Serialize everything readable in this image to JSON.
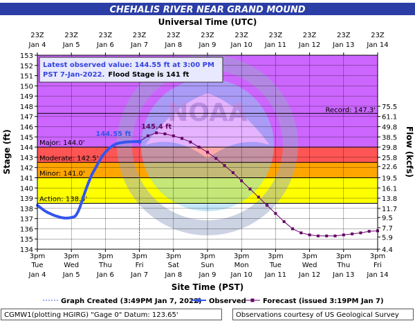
{
  "chart_data": {
    "type": "line",
    "title": "CHEHALIS RIVER NEAR GRAND MOUND",
    "top_axis_label": "Universal Time (UTC)",
    "top_ticks": [
      {
        "time": "23Z",
        "date": "Jan 4"
      },
      {
        "time": "23Z",
        "date": "Jan 5"
      },
      {
        "time": "23Z",
        "date": "Jan 6"
      },
      {
        "time": "23Z",
        "date": "Jan 7"
      },
      {
        "time": "23Z",
        "date": "Jan 8"
      },
      {
        "time": "23Z",
        "date": "Jan 9"
      },
      {
        "time": "23Z",
        "date": "Jan 10"
      },
      {
        "time": "23Z",
        "date": "Jan 11"
      },
      {
        "time": "23Z",
        "date": "Jan 12"
      },
      {
        "time": "23Z",
        "date": "Jan 13"
      },
      {
        "time": "23Z",
        "date": "Jan 14"
      }
    ],
    "xlabel": "Site Time (PST)",
    "x_ticks": [
      {
        "time": "3pm",
        "day": "Tue",
        "date": "Jan 4"
      },
      {
        "time": "3pm",
        "day": "Wed",
        "date": "Jan 5"
      },
      {
        "time": "3pm",
        "day": "Thu",
        "date": "Jan 6"
      },
      {
        "time": "3pm",
        "day": "Fri",
        "date": "Jan 7"
      },
      {
        "time": "3pm",
        "day": "Sat",
        "date": "Jan 8"
      },
      {
        "time": "3pm",
        "day": "Sun",
        "date": "Jan 9"
      },
      {
        "time": "3pm",
        "day": "Mon",
        "date": "Jan 10"
      },
      {
        "time": "3pm",
        "day": "Tue",
        "date": "Jan 11"
      },
      {
        "time": "3pm",
        "day": "Wed",
        "date": "Jan 12"
      },
      {
        "time": "3pm",
        "day": "Thu",
        "date": "Jan 13"
      },
      {
        "time": "3pm",
        "day": "Fri",
        "date": "Jan 14"
      }
    ],
    "xlim": [
      "Jan 4 3pm",
      "Jan 14 3pm"
    ],
    "ylabel": "Stage (ft)",
    "ylim": [
      134,
      153
    ],
    "y_ticks": [
      134,
      135,
      136,
      137,
      138,
      139,
      140,
      141,
      142,
      143,
      144,
      145,
      146,
      147,
      148,
      149,
      150,
      151,
      152,
      153
    ],
    "y2label": "Flow (kcfs)",
    "y2_ticks": [
      {
        "stage": 134.0,
        "label": "4.4"
      },
      {
        "stage": 135.2,
        "label": "5.9"
      },
      {
        "stage": 136.1,
        "label": "7.7"
      },
      {
        "stage": 137.1,
        "label": "9.5"
      },
      {
        "stage": 138.0,
        "label": "11.7"
      },
      {
        "stage": 139.0,
        "label": "13.8"
      },
      {
        "stage": 140.0,
        "label": "16.1"
      },
      {
        "stage": 141.0,
        "label": "19.5"
      },
      {
        "stage": 142.1,
        "label": "22.6"
      },
      {
        "stage": 143.0,
        "label": "25.8"
      },
      {
        "stage": 144.0,
        "label": "29.8"
      },
      {
        "stage": 145.0,
        "label": "38.5"
      },
      {
        "stage": 146.0,
        "label": "49.8"
      },
      {
        "stage": 147.0,
        "label": "61.1"
      },
      {
        "stage": 148.0,
        "label": "75.5"
      }
    ],
    "flood_categories": [
      {
        "name": "Action",
        "label": "Action: 138.5'",
        "from": 134,
        "to": 138.5,
        "color": "#ffffff"
      },
      {
        "name": "Minor",
        "label": "Minor: 141.0'",
        "from": 138.5,
        "to": 141.0,
        "color": "#ffff00"
      },
      {
        "name": "Moderate",
        "label": "Moderate: 142.5'",
        "from": 141.0,
        "to": 142.5,
        "color": "#ffaa00"
      },
      {
        "name": "Major",
        "label": "Major: 144.0'",
        "from": 142.5,
        "to": 144.0,
        "color": "#f0a070"
      },
      {
        "name": "MajorUpper",
        "label": "",
        "from": 144.0,
        "to": 153,
        "color": "#ff6868"
      }
    ],
    "band_colors": {
      "below_action": "#ffffff",
      "action_to_minor": "#ffff00",
      "minor_to_moderate": "#ffa500",
      "moderate_to_major": "#ff5555",
      "above_major": "#cc66ff"
    },
    "record": {
      "label": "Record: 147.3'",
      "value": 147.3
    },
    "observed_peak_label": "144.55 ft",
    "forecast_peak_label": "145.4 ft",
    "info_box": {
      "line1": "Latest observed value: 144.55 ft at 3:00 PM",
      "line2_blue": "PST 7-Jan-2022.",
      "line2_black": "Flood Stage is 141 ft"
    },
    "series": [
      {
        "name": "Observed",
        "color": "#3355ee",
        "points": [
          [
            0,
            138.3
          ],
          [
            0.1,
            138.05
          ],
          [
            0.2,
            137.8
          ],
          [
            0.3,
            137.6
          ],
          [
            0.4,
            137.45
          ],
          [
            0.5,
            137.3
          ],
          [
            0.6,
            137.2
          ],
          [
            0.7,
            137.1
          ],
          [
            0.8,
            137.05
          ],
          [
            0.9,
            137.05
          ],
          [
            1.0,
            137.1
          ],
          [
            1.1,
            137.2
          ],
          [
            1.15,
            137.4
          ],
          [
            1.2,
            137.7
          ],
          [
            1.25,
            138.1
          ],
          [
            1.3,
            138.6
          ],
          [
            1.35,
            139.1
          ],
          [
            1.4,
            139.6
          ],
          [
            1.45,
            140.05
          ],
          [
            1.5,
            140.5
          ],
          [
            1.55,
            140.9
          ],
          [
            1.6,
            141.3
          ],
          [
            1.65,
            141.6
          ],
          [
            1.7,
            141.9
          ],
          [
            1.75,
            142.2
          ],
          [
            1.8,
            142.5
          ],
          [
            1.85,
            142.8
          ],
          [
            1.9,
            143.1
          ],
          [
            2.0,
            143.5
          ],
          [
            2.1,
            143.85
          ],
          [
            2.2,
            144.1
          ],
          [
            2.3,
            144.3
          ],
          [
            2.4,
            144.4
          ],
          [
            2.5,
            144.45
          ],
          [
            2.6,
            144.5
          ],
          [
            2.7,
            144.52
          ],
          [
            2.8,
            144.53
          ],
          [
            2.9,
            144.54
          ],
          [
            3.0,
            144.55
          ]
        ]
      },
      {
        "name": "Forecast",
        "color": "#660066",
        "points": [
          [
            3.0,
            144.55
          ],
          [
            3.25,
            145.1
          ],
          [
            3.5,
            145.4
          ],
          [
            3.75,
            145.3
          ],
          [
            4.0,
            145.1
          ],
          [
            4.25,
            144.85
          ],
          [
            4.5,
            144.5
          ],
          [
            4.75,
            144.0
          ],
          [
            5.0,
            143.5
          ],
          [
            5.25,
            142.9
          ],
          [
            5.5,
            142.2
          ],
          [
            5.75,
            141.5
          ],
          [
            6.0,
            140.7
          ],
          [
            6.25,
            139.9
          ],
          [
            6.5,
            139.1
          ],
          [
            6.75,
            138.3
          ],
          [
            7.0,
            137.5
          ],
          [
            7.25,
            136.7
          ],
          [
            7.5,
            136.0
          ],
          [
            7.75,
            135.6
          ],
          [
            8.0,
            135.4
          ],
          [
            8.25,
            135.3
          ],
          [
            8.5,
            135.3
          ],
          [
            8.75,
            135.3
          ],
          [
            9.0,
            135.4
          ],
          [
            9.25,
            135.5
          ],
          [
            9.5,
            135.6
          ],
          [
            9.75,
            135.75
          ],
          [
            10.0,
            135.8
          ]
        ]
      }
    ],
    "graph_created_at_day": 3.0
  },
  "legend": {
    "graph_created": "Graph Created (3:49PM Jan 7, 2022)",
    "observed": "Observed",
    "forecast": "Forecast (issued 3:19PM Jan 7)"
  },
  "footer": {
    "left": "CGMW1(plotting HGIRG) \"Gage 0\" Datum: 123.65'",
    "right": "Observations courtesy of US Geological Survey"
  },
  "colors": {
    "title_bg": "#2b3ea6",
    "title_fg": "#ffffff",
    "grid": "#000000",
    "observed": "#3355ee",
    "forecast": "#660066"
  }
}
